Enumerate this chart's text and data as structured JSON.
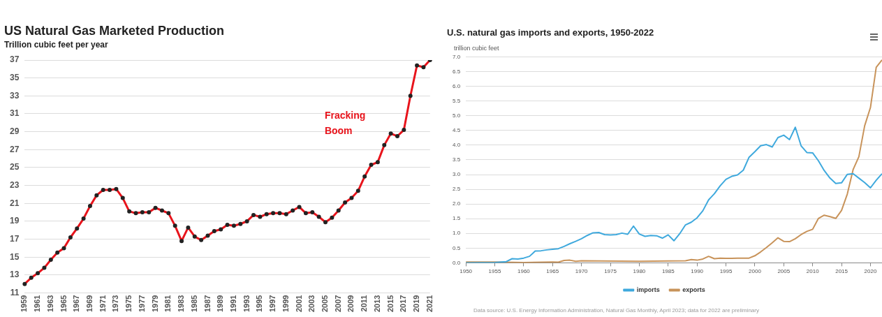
{
  "chart_data": [
    {
      "type": "line",
      "title": "US Natural Gas Marketed Production",
      "subtitle": "Trillion cubic feet per year",
      "categories": [
        "1959",
        null,
        "1961",
        null,
        "1963",
        null,
        "1965",
        null,
        "1967",
        null,
        "1969",
        null,
        "1971",
        null,
        "1973",
        null,
        "1975",
        null,
        "1977",
        null,
        "1979",
        null,
        "1981",
        null,
        "1983",
        null,
        "1985",
        null,
        "1987",
        null,
        "1989",
        null,
        "1991",
        null,
        "1993",
        null,
        "1995",
        null,
        "1997",
        null,
        "1999",
        null,
        "2001",
        null,
        "2003",
        null,
        "2005",
        null,
        "2007",
        null,
        "2009",
        null,
        "2011",
        null,
        "2013",
        null,
        "2015",
        null,
        "2017",
        null,
        "2019",
        null,
        "2021"
      ],
      "series": [
        {
          "color": "#e8141c",
          "values": [
            12.0,
            12.7,
            13.2,
            13.8,
            14.7,
            15.5,
            16.0,
            17.2,
            18.2,
            19.3,
            20.7,
            21.9,
            22.5,
            22.5,
            22.6,
            21.6,
            20.1,
            19.9,
            20.0,
            20.0,
            20.5,
            20.2,
            19.9,
            18.5,
            16.8,
            18.3,
            17.3,
            16.9,
            17.4,
            17.9,
            18.1,
            18.6,
            18.5,
            18.7,
            19.0,
            19.7,
            19.5,
            19.8,
            19.9,
            19.9,
            19.8,
            20.2,
            20.6,
            19.9,
            20.0,
            19.5,
            18.9,
            19.4,
            20.2,
            21.1,
            21.6,
            22.4,
            24.0,
            25.3,
            25.6,
            27.5,
            28.8,
            28.5,
            29.2,
            33.0,
            36.4,
            36.2,
            37.0
          ]
        }
      ],
      "ylim": [
        11,
        37
      ],
      "yticks": [
        11,
        13,
        15,
        17,
        19,
        21,
        23,
        25,
        27,
        29,
        31,
        33,
        35,
        37
      ],
      "grid": "y",
      "marker": "circle",
      "annotations": [
        "Fracking Boom"
      ]
    },
    {
      "type": "line",
      "title": "U.S. natural gas imports and exports, 1950-2022",
      "ylabel": "trillion cubic feet",
      "series": [
        {
          "name": "imports",
          "color": "#3fa9dd",
          "x": [
            1950,
            1955,
            1957,
            1958,
            1959,
            1960,
            1961,
            1962,
            1963,
            1964,
            1965,
            1966,
            1967,
            1968,
            1969,
            1970,
            1971,
            1972,
            1973,
            1974,
            1975,
            1976,
            1977,
            1978,
            1979,
            1980,
            1981,
            1982,
            1983,
            1984,
            1985,
            1986,
            1987,
            1988,
            1989,
            1990,
            1991,
            1992,
            1993,
            1994,
            1995,
            1996,
            1997,
            1998,
            1999,
            2000,
            2001,
            2002,
            2003,
            2004,
            2005,
            2006,
            2007,
            2008,
            2009,
            2010,
            2011,
            2012,
            2013,
            2014,
            2015,
            2016,
            2017,
            2018,
            2019,
            2020,
            2021,
            2022
          ],
          "values": [
            0.0,
            0.01,
            0.04,
            0.14,
            0.13,
            0.16,
            0.22,
            0.4,
            0.41,
            0.44,
            0.46,
            0.48,
            0.56,
            0.65,
            0.73,
            0.82,
            0.93,
            1.02,
            1.03,
            0.96,
            0.95,
            0.96,
            1.01,
            0.97,
            1.25,
            0.98,
            0.9,
            0.93,
            0.92,
            0.84,
            0.95,
            0.75,
            0.99,
            1.29,
            1.38,
            1.53,
            1.77,
            2.14,
            2.35,
            2.62,
            2.84,
            2.94,
            2.99,
            3.15,
            3.59,
            3.78,
            3.98,
            4.02,
            3.94,
            4.26,
            4.34,
            4.19,
            4.61,
            3.98,
            3.75,
            3.74,
            3.47,
            3.14,
            2.88,
            2.7,
            2.72,
            3.01,
            3.03,
            2.88,
            2.73,
            2.55,
            2.81,
            3.03
          ]
        },
        {
          "name": "exports",
          "color": "#c8935a",
          "x": [
            1950,
            1955,
            1960,
            1965,
            1966,
            1967,
            1968,
            1969,
            1970,
            1980,
            1985,
            1988,
            1989,
            1990,
            1991,
            1992,
            1993,
            1994,
            1995,
            1996,
            1997,
            1998,
            1999,
            2000,
            2001,
            2002,
            2003,
            2004,
            2005,
            2006,
            2007,
            2008,
            2009,
            2010,
            2011,
            2012,
            2013,
            2014,
            2015,
            2016,
            2017,
            2018,
            2019,
            2020,
            2021,
            2022
          ],
          "values": [
            0.03,
            0.03,
            0.01,
            0.03,
            0.02,
            0.08,
            0.09,
            0.05,
            0.07,
            0.05,
            0.06,
            0.07,
            0.11,
            0.09,
            0.13,
            0.22,
            0.14,
            0.16,
            0.15,
            0.15,
            0.16,
            0.16,
            0.16,
            0.24,
            0.37,
            0.52,
            0.68,
            0.85,
            0.73,
            0.72,
            0.82,
            0.96,
            1.07,
            1.14,
            1.51,
            1.62,
            1.57,
            1.51,
            1.78,
            2.34,
            3.17,
            3.61,
            4.66,
            5.28,
            6.65,
            6.9
          ]
        }
      ],
      "xlim": [
        1950,
        2022
      ],
      "xticks": [
        1950,
        1955,
        1960,
        1965,
        1970,
        1975,
        1980,
        1985,
        1990,
        1995,
        2000,
        2005,
        2010,
        2015,
        2020
      ],
      "ylim": [
        0,
        7
      ],
      "yticks": [
        {
          "value": 0,
          "label": "0.0"
        },
        0.5,
        {
          "value": 1,
          "label": "1.0"
        },
        1.5,
        {
          "value": 2,
          "label": "2.0"
        },
        2.5,
        {
          "value": 3,
          "label": "3.0"
        },
        3.5,
        {
          "value": 4,
          "label": "4.0"
        },
        4.5,
        {
          "value": 5,
          "label": "5.0"
        },
        5.5,
        {
          "value": 6,
          "label": "6.0"
        },
        6.5,
        {
          "value": 7,
          "label": "7.0"
        }
      ],
      "grid": "y",
      "legend": "bottom",
      "annotations": [
        "Data source: U.S. Energy Information Administration, Natural Gas Monthly, April 2023; data for 2022 are preliminary"
      ]
    }
  ]
}
